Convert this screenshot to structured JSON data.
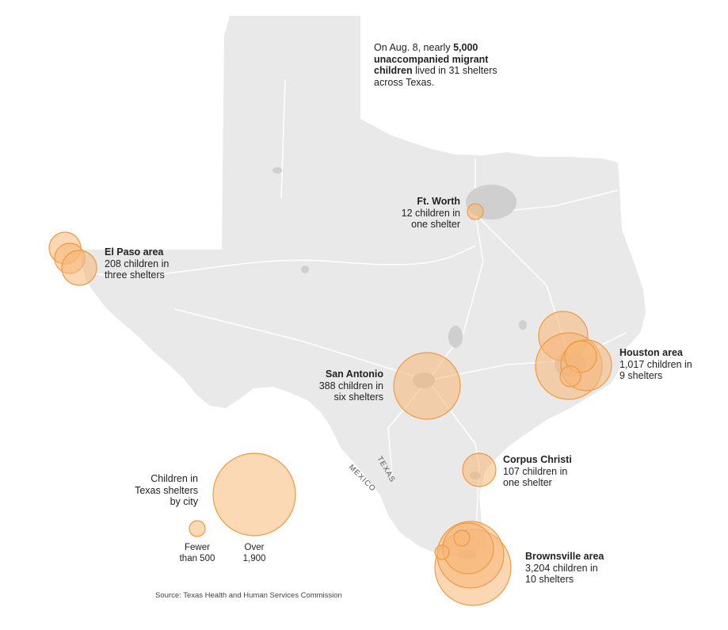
{
  "intro": {
    "pre": "On Aug. 8, nearly ",
    "bold1": "5,000",
    "bold2": "unaccompanied migrant",
    "bold3": "children",
    "post1": " lived in 31 shelters",
    "post2": "across Texas."
  },
  "cities": [
    {
      "key": "ft-worth",
      "name": "Ft. Worth",
      "line1": "12 children in",
      "line2": "one shelter",
      "children": 12,
      "shelters": 1
    },
    {
      "key": "el-paso",
      "name": "El Paso area",
      "line1": "208 children in",
      "line2": "three shelters",
      "children": 208,
      "shelters": 3
    },
    {
      "key": "houston",
      "name": "Houston area",
      "line1": "1,017 children in",
      "line2": "9 shelters",
      "children": 1017,
      "shelters": 9
    },
    {
      "key": "san-antonio",
      "name": "San Antonio",
      "line1": "388 children in",
      "line2": "six shelters",
      "children": 388,
      "shelters": 6
    },
    {
      "key": "corpus-christi",
      "name": "Corpus Christi",
      "line1": "107 children in",
      "line2": "one shelter",
      "children": 107,
      "shelters": 1
    },
    {
      "key": "brownsville",
      "name": "Brownsville area",
      "line1": "3,204 children in",
      "line2": "10 shelters",
      "children": 3204,
      "shelters": 10
    }
  ],
  "legend": {
    "title1": "Children in",
    "title2": "Texas shelters",
    "title3": "by city",
    "small1": "Fewer",
    "small2": "than 500",
    "large1": "Over",
    "large2": "1,900"
  },
  "labels": {
    "texas": "TEXAS",
    "mexico": "MEXICO"
  },
  "source": "Source: Texas Health and Human Services Commission",
  "colors": {
    "land": "#e9e9e9",
    "bubble_fill": "#f7b776",
    "bubble_stroke": "#ee9a45",
    "road": "#ffffff",
    "urban": "#cfcfcf"
  }
}
